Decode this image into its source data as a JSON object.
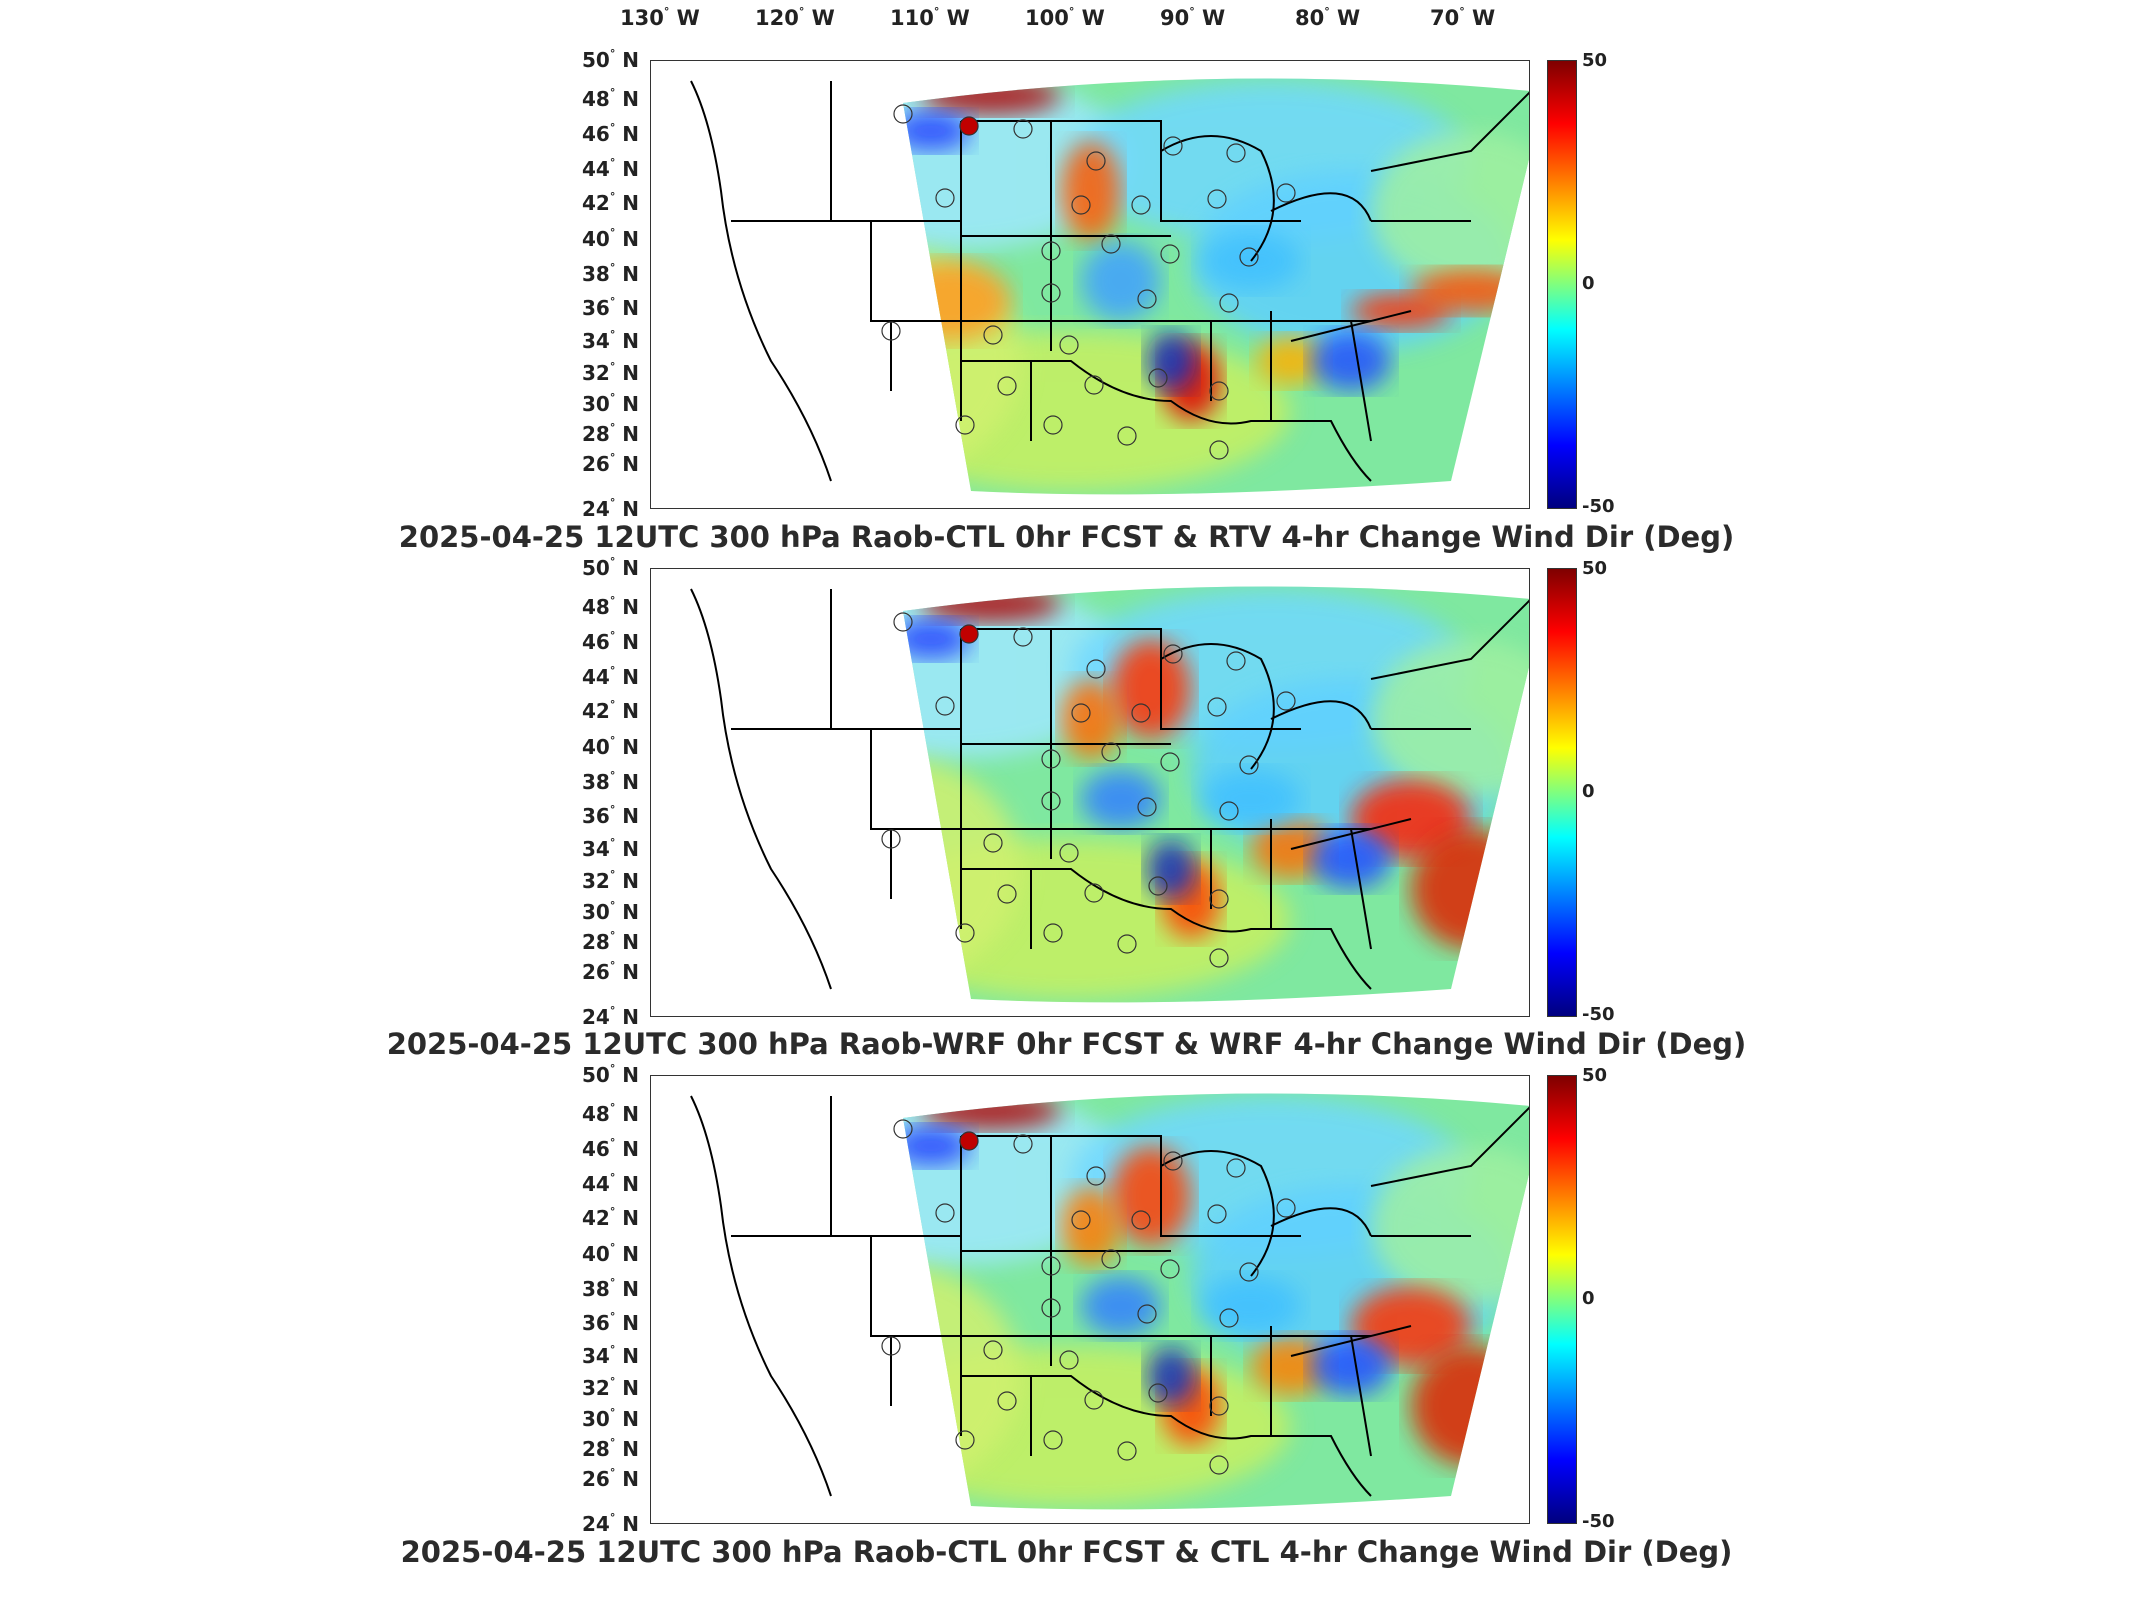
{
  "longitude_labels": [
    {
      "deg": "130",
      "hemi": "W"
    },
    {
      "deg": "120",
      "hemi": "W"
    },
    {
      "deg": "110",
      "hemi": "W"
    },
    {
      "deg": "100",
      "hemi": "W"
    },
    {
      "deg": "90",
      "hemi": "W"
    },
    {
      "deg": "80",
      "hemi": "W"
    },
    {
      "deg": "70",
      "hemi": "W"
    }
  ],
  "latitude_labels": [
    "50",
    "48",
    "46",
    "44",
    "42",
    "40",
    "38",
    "36",
    "34",
    "32",
    "30",
    "28",
    "26",
    "24"
  ],
  "latitude_hemi": "N",
  "colorbar": {
    "max": "50",
    "mid": "0",
    "min": "-50",
    "colors": [
      "#7f0000",
      "#ff0000",
      "#ff7f00",
      "#ffff00",
      "#7fff7f",
      "#00ffff",
      "#007fff",
      "#0000ff",
      "#00007f"
    ]
  },
  "panels": [
    {
      "title": "2025-04-25 12UTC 300 hPa Raob-CTL 0hr FCST & RTV 4-hr Change Wind Dir (Deg)"
    },
    {
      "title": "2025-04-25 12UTC 300 hPa Raob-WRF 0hr FCST & WRF 4-hr Change Wind Dir (Deg)"
    },
    {
      "title": "2025-04-25 12UTC 300 hPa Raob-CTL 0hr FCST & CTL 4-hr Change Wind Dir (Deg)"
    }
  ]
}
